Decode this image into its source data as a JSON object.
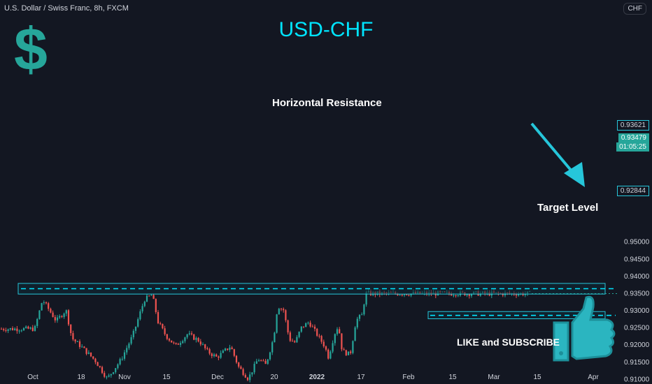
{
  "header": {
    "symbol_info": "U.S. Dollar / Swiss Franc, 8h, FXCM",
    "currency": "CHF"
  },
  "annotations": {
    "main_title": "USD-CHF",
    "resistance_label": "Horizontal Resistance",
    "target_label": "Target Level",
    "cta_label": "LIKE and SUBSCRIBE",
    "dollar_symbol": "$"
  },
  "price_badges": {
    "resistance": "0.93621",
    "last_price": "0.93479",
    "countdown": "01:05:25",
    "target": "0.92844"
  },
  "colors": {
    "background": "#131722",
    "up": "#26a69a",
    "down": "#ef5350",
    "accent": "#00e5ff",
    "box_border": "#26c6da",
    "box_fill": "#0e2a36",
    "arrow": "#26c6da",
    "thumb": "#2bb5c0"
  },
  "chart_data": {
    "type": "candlestick",
    "title": "USD-CHF",
    "y_tick_labels": [
      "0.95000",
      "0.94500",
      "0.94000",
      "0.93500",
      "0.93000",
      "0.92500",
      "0.92000",
      "0.91500",
      "0.91000"
    ],
    "x_tick_labels": [
      "Oct",
      "18",
      "Nov",
      "15",
      "Dec",
      "20",
      "2022",
      "17",
      "Feb",
      "15",
      "Mar",
      "15",
      "Apr"
    ],
    "ylim": [
      0.9088,
      0.9508
    ],
    "grid": false,
    "levels": [
      {
        "name": "Horizontal Resistance",
        "value": 0.93621,
        "zone": [
          0.93465,
          0.93775
        ]
      },
      {
        "name": "Target Level",
        "value": 0.92844,
        "zone": [
          0.92745,
          0.92955
        ]
      }
    ],
    "last_price": 0.93479,
    "path_points": [
      {
        "date": "Sep 27",
        "price": 0.9245
      },
      {
        "date": "Oct 1",
        "price": 0.933
      },
      {
        "date": "Oct 8",
        "price": 0.9268
      },
      {
        "date": "Oct 13",
        "price": 0.93
      },
      {
        "date": "Oct 16",
        "price": 0.9218
      },
      {
        "date": "Oct 21",
        "price": 0.9192
      },
      {
        "date": "Oct 28",
        "price": 0.9152
      },
      {
        "date": "Nov 3",
        "price": 0.91
      },
      {
        "date": "Nov 10",
        "price": 0.9155
      },
      {
        "date": "Nov 16",
        "price": 0.9225
      },
      {
        "date": "Nov 22",
        "price": 0.933
      },
      {
        "date": "Nov 26",
        "price": 0.9345
      },
      {
        "date": "Nov 29",
        "price": 0.9265
      },
      {
        "date": "Dec 3",
        "price": 0.9225
      },
      {
        "date": "Dec 8",
        "price": 0.9195
      },
      {
        "date": "Dec 14",
        "price": 0.923
      },
      {
        "date": "Dec 20",
        "price": 0.921
      },
      {
        "date": "Dec 24",
        "price": 0.918
      },
      {
        "date": "Dec 29",
        "price": 0.9162
      },
      {
        "date": "Jan 5",
        "price": 0.9195
      },
      {
        "date": "Jan 9",
        "price": 0.9135
      },
      {
        "date": "Jan 14",
        "price": 0.91
      },
      {
        "date": "Jan 19",
        "price": 0.9158
      },
      {
        "date": "Jan 23",
        "price": 0.914
      },
      {
        "date": "Jan 27",
        "price": 0.922
      },
      {
        "date": "Jan 29",
        "price": 0.9312
      },
      {
        "date": "Feb 1",
        "price": 0.93
      },
      {
        "date": "Feb 4",
        "price": 0.9215
      },
      {
        "date": "Feb 7",
        "price": 0.9205
      },
      {
        "date": "Feb 10",
        "price": 0.9248
      },
      {
        "date": "Feb 14",
        "price": 0.9265
      },
      {
        "date": "Feb 18",
        "price": 0.923
      },
      {
        "date": "Feb 22",
        "price": 0.9195
      },
      {
        "date": "Feb 24",
        "price": 0.9162
      },
      {
        "date": "Feb 27",
        "price": 0.923
      },
      {
        "date": "Mar 1",
        "price": 0.9255
      },
      {
        "date": "Mar 3",
        "price": 0.918
      },
      {
        "date": "Mar 7",
        "price": 0.917
      },
      {
        "date": "Mar 8",
        "price": 0.92
      },
      {
        "date": "Mar 10",
        "price": 0.927
      },
      {
        "date": "Mar 13",
        "price": 0.9285
      },
      {
        "date": "Mar 15",
        "price": 0.9348
      }
    ]
  }
}
